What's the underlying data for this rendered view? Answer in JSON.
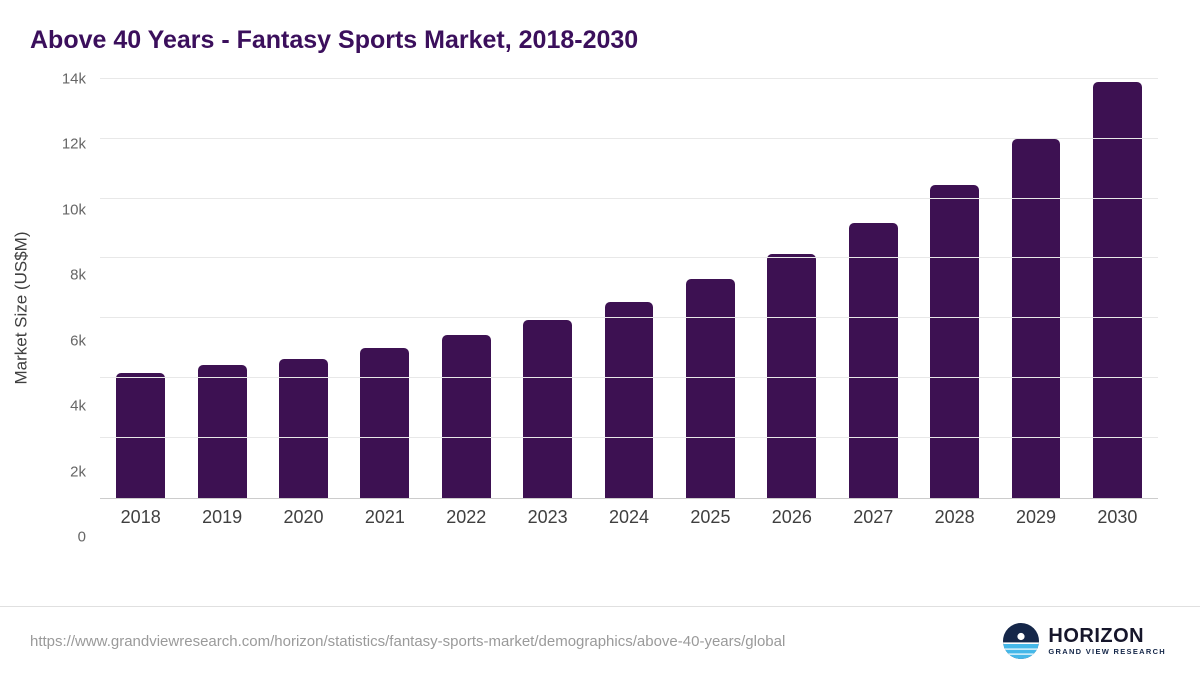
{
  "chart_data": {
    "type": "bar",
    "title": "Above 40 Years - Fantasy Sports Market, 2018-2030",
    "xlabel": "",
    "ylabel": "Market Size (US$M)",
    "categories": [
      "2018",
      "2019",
      "2020",
      "2021",
      "2022",
      "2023",
      "2024",
      "2025",
      "2026",
      "2027",
      "2028",
      "2029",
      "2030"
    ],
    "values": [
      4150,
      4450,
      4620,
      5000,
      5450,
      5950,
      6550,
      7300,
      8150,
      9200,
      10450,
      12000,
      13900
    ],
    "ylim": [
      0,
      14000
    ],
    "yticks": [
      0,
      2000,
      4000,
      6000,
      8000,
      10000,
      12000,
      14000
    ],
    "ytick_labels": [
      "0",
      "2k",
      "4k",
      "6k",
      "8k",
      "10k",
      "12k",
      "14k"
    ],
    "grid": true,
    "legend": "none",
    "bar_color": "#3d1152",
    "title_color": "#3b0f5c"
  },
  "footer": {
    "source_url": "https://www.grandviewresearch.com/horizon/statistics/fantasy-sports-market/demographics/above-40-years/global",
    "logo_title": "HORIZON",
    "logo_subtitle": "GRAND VIEW RESEARCH"
  }
}
